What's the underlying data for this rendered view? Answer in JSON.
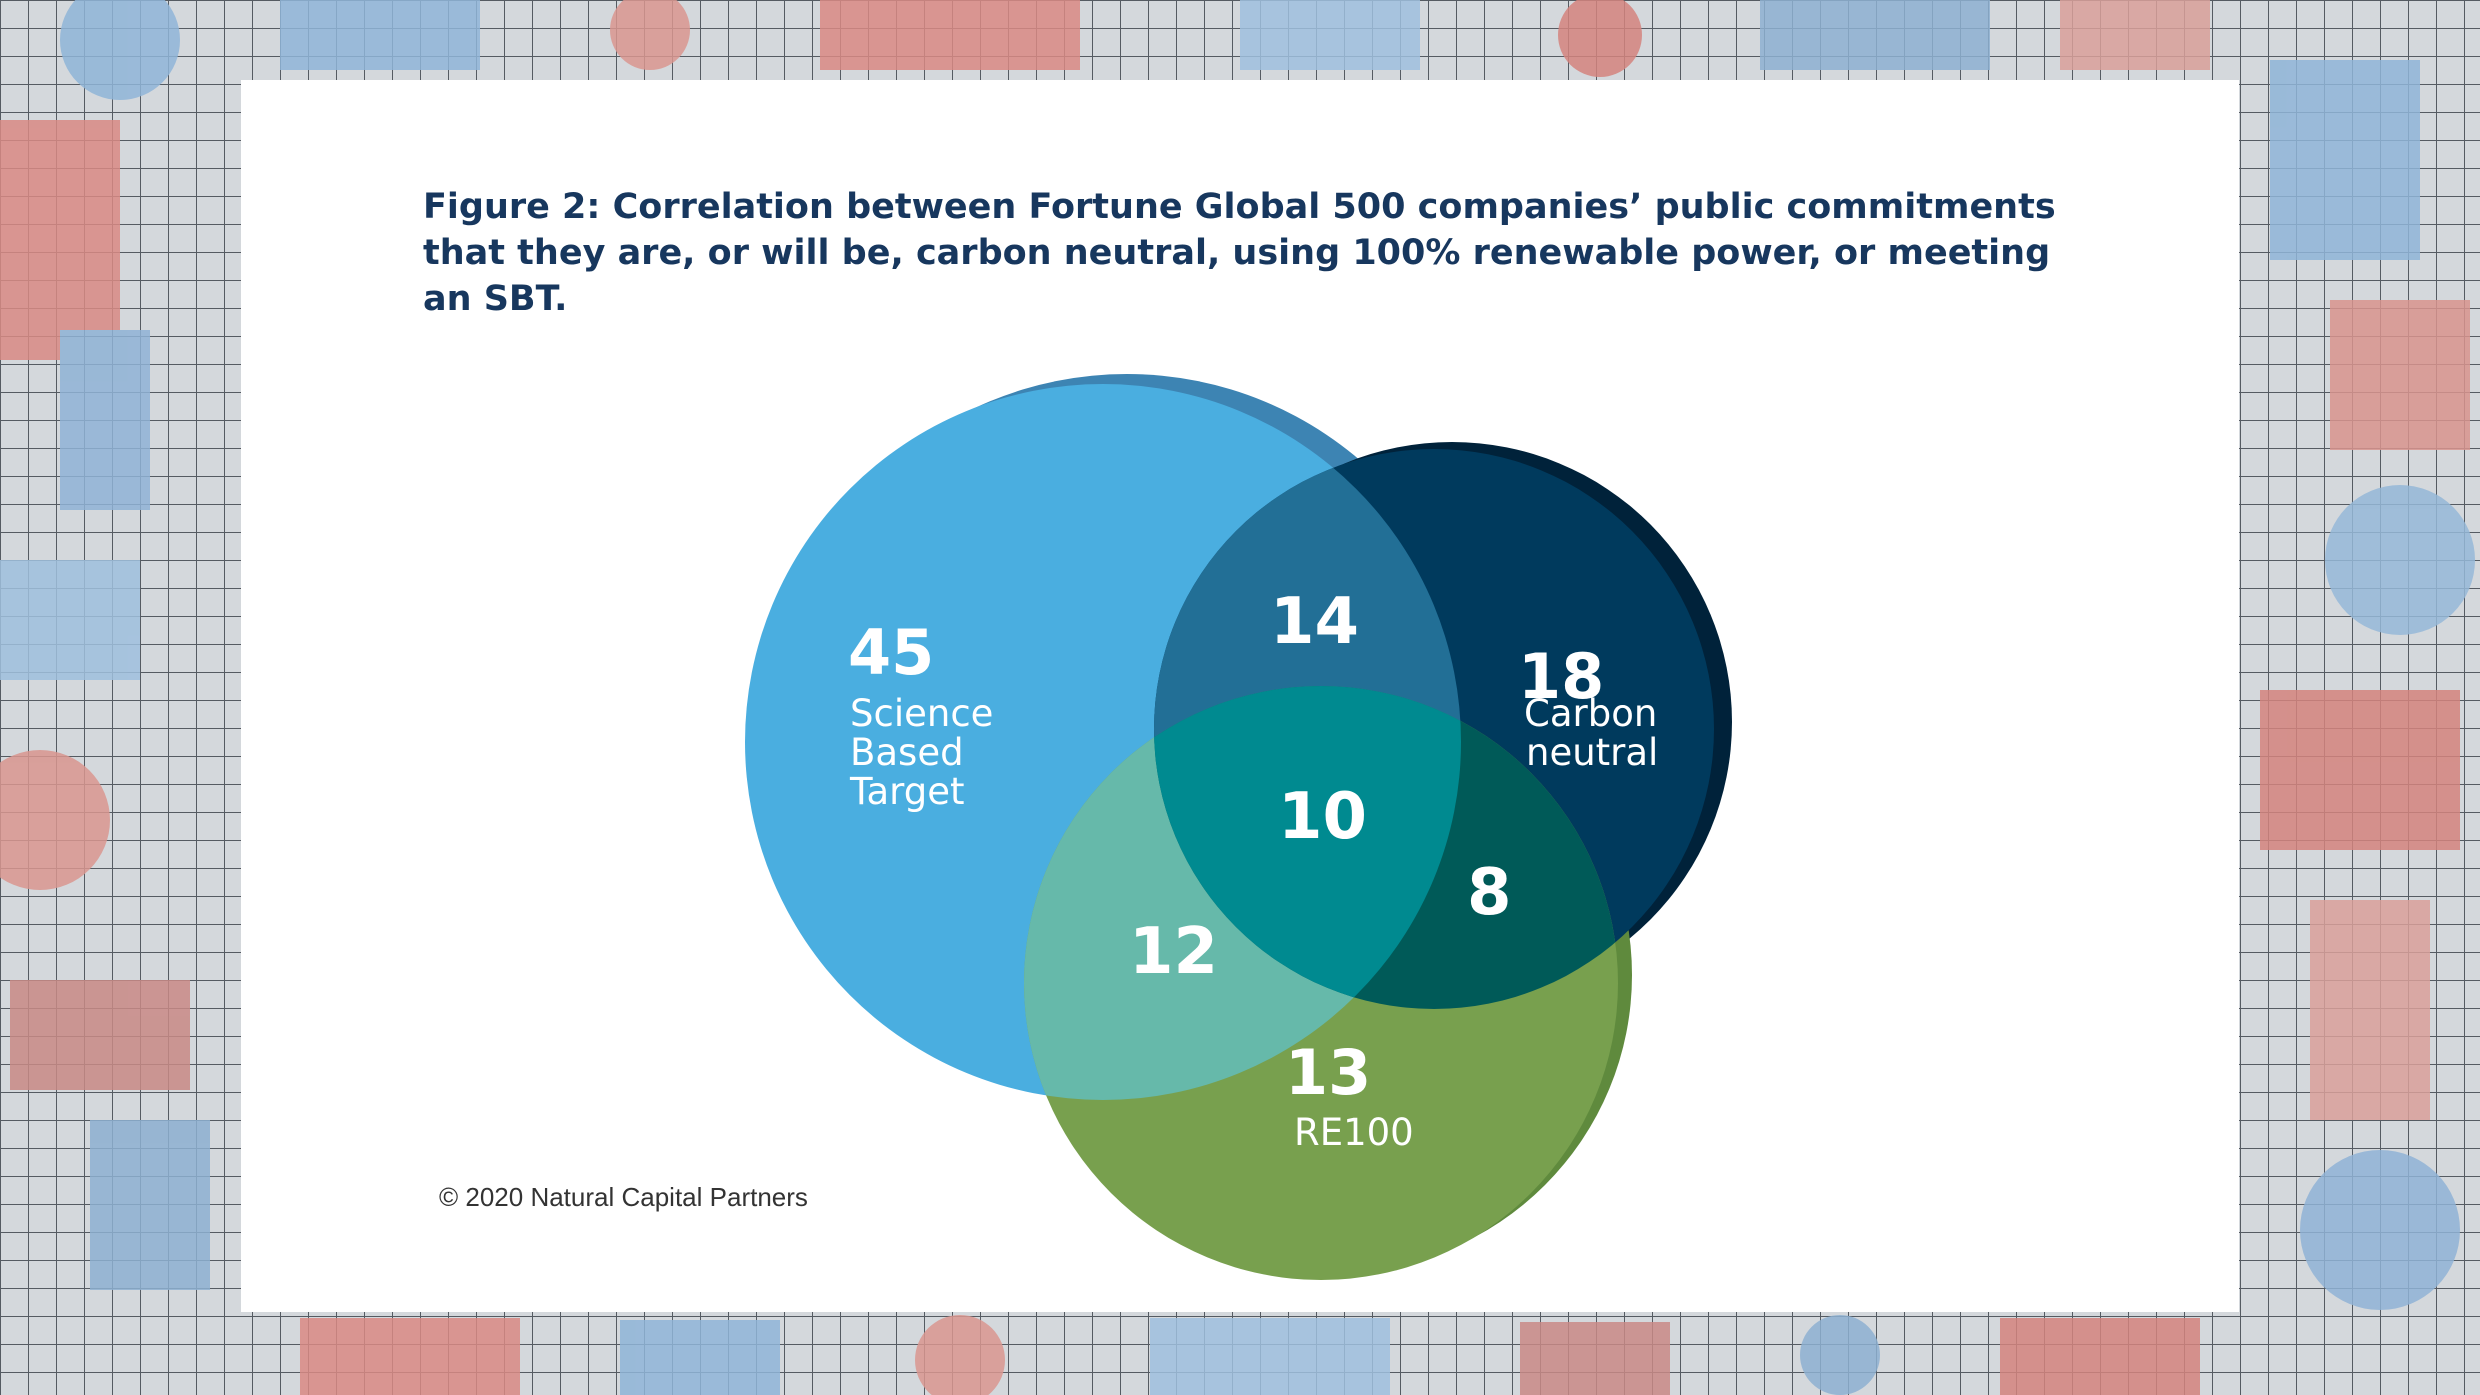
{
  "title": "Figure 2: Correlation between Fortune Global 500 companies’ public commitments that they are, or will be, carbon neutral, using 100% renewable power, or meeting an SBT.",
  "credit": "© 2020 Natural Capital Partners",
  "colors": {
    "sbt": "#4aaee0",
    "carbon_neutral": "#003a5d",
    "re100": "#78a04e",
    "sbt_cn": "#226f96",
    "sbt_re": "#66b9aa",
    "cn_re": "#005a58",
    "all": "#008a90"
  },
  "sets": [
    {
      "id": "sbt",
      "value": "45",
      "label_lines": [
        "Science",
        "Based",
        "Target"
      ]
    },
    {
      "id": "carbon_neutral",
      "value": "18",
      "label_lines": [
        "Carbon",
        "neutral"
      ]
    },
    {
      "id": "re100",
      "value": "13",
      "label_lines": [
        "RE100"
      ]
    }
  ],
  "intersections": [
    {
      "sets": [
        "sbt",
        "carbon_neutral"
      ],
      "value": "14"
    },
    {
      "sets": [
        "sbt",
        "carbon_neutral",
        "re100"
      ],
      "value": "10"
    },
    {
      "sets": [
        "sbt",
        "re100"
      ],
      "value": "12"
    },
    {
      "sets": [
        "carbon_neutral",
        "re100"
      ],
      "value": "8"
    }
  ]
}
